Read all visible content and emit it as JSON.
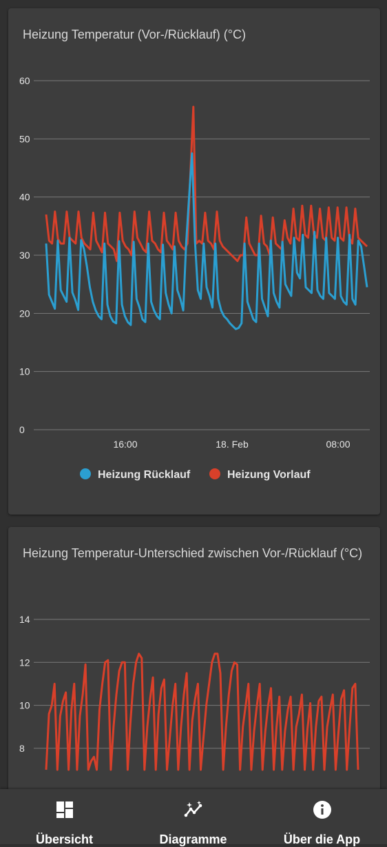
{
  "charts": [
    {
      "title": "Heizung Temperatur (Vor-/Rücklauf) (°C)"
    },
    {
      "title": "Heizung Temperatur-Unterschied zwischen Vor-/Rücklauf (°C)"
    }
  ],
  "chart_data": [
    {
      "type": "line",
      "title": "Heizung Temperatur (Vor-/Rücklauf) (°C)",
      "ylim": [
        0,
        60
      ],
      "yticks": [
        "60",
        "50",
        "40",
        "30",
        "20",
        "10",
        "0"
      ],
      "xticks": [
        "16:00",
        "18. Feb",
        "08:00"
      ],
      "grid": true,
      "legend": "bottom",
      "series": [
        {
          "name": "Heizung Rücklauf",
          "color": "#2b9fd1",
          "values": [
            32.0,
            23.2,
            22.0,
            20.8,
            32.5,
            24.0,
            23.0,
            22.0,
            33.0,
            23.6,
            22.3,
            20.6,
            32.6,
            31.0,
            28.0,
            24.5,
            22.0,
            20.5,
            19.5,
            19.0,
            32.0,
            21.5,
            19.5,
            18.6,
            18.3,
            32.4,
            21.5,
            19.5,
            18.5,
            18.0,
            32.3,
            22.5,
            21.0,
            19.0,
            18.5,
            32.0,
            22.0,
            20.5,
            19.5,
            19.0,
            31.8,
            23.5,
            21.5,
            20.0,
            31.5,
            24.0,
            22.5,
            20.5,
            32.0,
            40.0,
            47.5,
            32.5,
            24.0,
            22.5,
            32.0,
            24.5,
            23.0,
            21.0,
            32.0,
            22.5,
            20.5,
            19.5,
            19.0,
            18.3,
            17.8,
            17.3,
            17.5,
            18.3,
            32.0,
            22.0,
            20.5,
            19.0,
            18.5,
            32.0,
            22.5,
            21.0,
            19.5,
            32.5,
            23.5,
            22.0,
            21.0,
            32.3,
            25.0,
            24.0,
            23.0,
            33.0,
            27.0,
            26.0,
            33.5,
            24.5,
            24.0,
            23.5,
            34.0,
            24.0,
            23.0,
            22.5,
            33.0,
            23.5,
            23.0,
            22.5,
            33.0,
            23.0,
            22.0,
            21.5,
            33.5,
            22.5,
            21.5,
            32.5,
            31.5,
            28.0,
            24.5
          ]
        },
        {
          "name": "Heizung Vorlauf",
          "color": "#d9402a",
          "values": [
            37.0,
            32.5,
            32.0,
            37.5,
            32.8,
            32.0,
            32.0,
            37.5,
            33.0,
            32.5,
            32.0,
            37.5,
            33.0,
            32.0,
            31.5,
            31.0,
            37.3,
            32.5,
            31.5,
            30.5,
            37.3,
            32.0,
            31.5,
            31.0,
            29.0,
            37.3,
            32.5,
            31.5,
            31.0,
            30.0,
            37.5,
            33.0,
            32.0,
            31.0,
            30.5,
            37.5,
            32.5,
            32.0,
            31.0,
            30.5,
            37.3,
            32.5,
            31.8,
            31.0,
            37.3,
            32.5,
            31.5,
            31.0,
            32.0,
            44.0,
            55.5,
            32.0,
            32.5,
            32.0,
            37.3,
            32.5,
            32.0,
            31.0,
            37.5,
            32.5,
            31.5,
            31.0,
            30.5,
            30.0,
            29.5,
            29.0,
            30.0,
            30.0,
            36.5,
            32.0,
            31.0,
            30.0,
            30.0,
            36.8,
            32.0,
            31.5,
            30.0,
            36.5,
            32.0,
            31.5,
            31.0,
            36.0,
            33.0,
            32.0,
            38.0,
            33.0,
            32.5,
            38.5,
            33.5,
            33.0,
            38.5,
            33.5,
            33.0,
            38.0,
            33.0,
            32.5,
            38.2,
            33.0,
            32.5,
            38.2,
            33.0,
            32.5,
            38.2,
            33.0,
            32.0,
            38.0,
            33.0,
            32.5,
            32.0,
            31.5
          ]
        }
      ]
    },
    {
      "type": "line",
      "title": "Heizung Temperatur-Unterschied zwischen Vor-/Rücklauf (°C)",
      "ylim": [
        7,
        14
      ],
      "yticks": [
        "14",
        "12",
        "10",
        "8"
      ],
      "grid": true,
      "series": [
        {
          "name": "",
          "color": "#d9402a",
          "values": [
            7,
            9.6,
            10.0,
            11.0,
            7,
            9.5,
            10.2,
            10.6,
            7,
            9.8,
            11.0,
            7,
            9.5,
            10.5,
            11.9,
            7,
            7.4,
            7.6,
            7,
            9.8,
            11.0,
            12.0,
            12.1,
            7,
            9.0,
            10.5,
            11.6,
            12.0,
            12.0,
            7,
            9.2,
            11.0,
            12.0,
            12.4,
            12.2,
            7,
            9.0,
            10.3,
            11.3,
            7,
            9.6,
            10.8,
            11.2,
            7,
            8.5,
            10.0,
            11.0,
            7,
            9.0,
            10.5,
            11.5,
            7,
            9.3,
            10.3,
            11.0,
            7,
            8.5,
            10.0,
            11.0,
            12.0,
            12.4,
            12.4,
            11.5,
            7,
            9.0,
            10.5,
            11.6,
            12.0,
            11.9,
            7,
            9.0,
            10.0,
            11.0,
            7,
            8.8,
            10.0,
            11.0,
            7,
            8.8,
            10.0,
            10.8,
            7,
            9.0,
            10.4,
            7,
            8.8,
            9.8,
            10.4,
            7,
            9.0,
            9.6,
            10.5,
            7,
            8.9,
            10.1,
            7,
            9.0,
            10.2,
            10.4,
            7,
            9.0,
            9.8,
            10.5,
            7,
            8.7,
            10.3,
            10.7,
            7,
            9.0,
            10.8,
            11.0,
            7
          ]
        }
      ]
    }
  ],
  "nav": [
    {
      "label": "Übersicht",
      "icon": "dashboard-icon"
    },
    {
      "label": "Diagramme",
      "icon": "chart-icon"
    },
    {
      "label": "Über die App",
      "icon": "info-icon"
    }
  ]
}
